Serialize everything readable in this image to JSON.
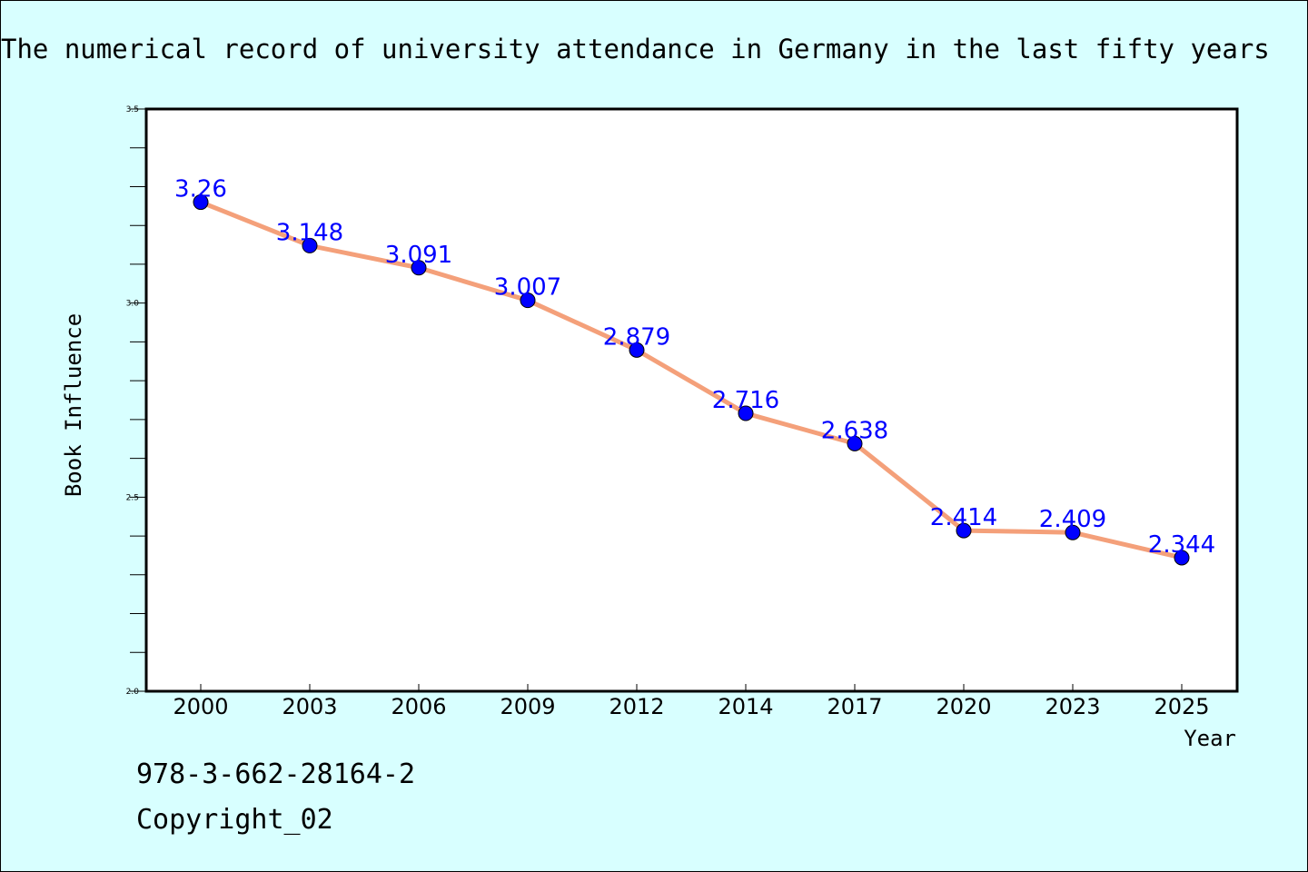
{
  "chart_data": {
    "type": "line",
    "title": "The numerical record of university attendance in Germany in the last fifty years",
    "xlabel": "Year",
    "ylabel": "Book Influence",
    "categories": [
      "2000",
      "2003",
      "2006",
      "2009",
      "2012",
      "2014",
      "2017",
      "2020",
      "2023",
      "2025"
    ],
    "values": [
      3.26,
      3.148,
      3.091,
      3.007,
      2.879,
      2.716,
      2.638,
      2.414,
      2.409,
      2.344
    ],
    "value_labels": [
      "3.26",
      "3.148",
      "3.091",
      "3.007",
      "2.879",
      "2.716",
      "2.638",
      "2.414",
      "2.409",
      "2.344"
    ],
    "ylim": [
      2.0,
      3.5
    ],
    "y_ticks": [
      "2.0",
      "2.5",
      "3.0",
      "3.5"
    ],
    "grid": false,
    "legend": "none",
    "colors": {
      "background": "#d8ffff",
      "plot_background": "#ffffff",
      "line": "#f4a07a",
      "marker": "#0000ff",
      "data_label": "#0000ff"
    }
  },
  "footer": {
    "isbn": "978-3-662-28164-2",
    "copyright": "Copyright_02"
  }
}
